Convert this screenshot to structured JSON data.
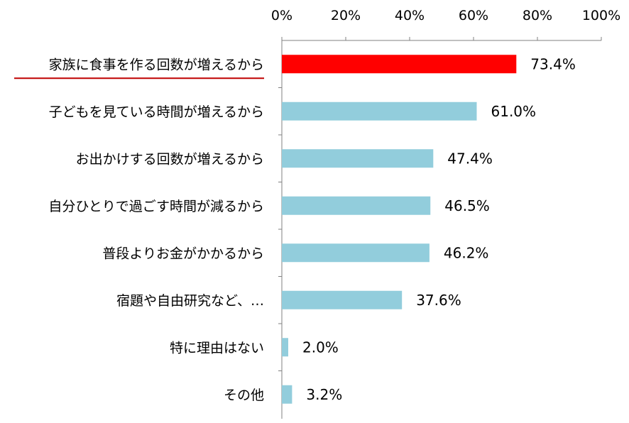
{
  "chart_data": {
    "type": "bar",
    "orientation": "horizontal",
    "title": "",
    "xlabel": "",
    "ylabel": "",
    "xlim": [
      0,
      100
    ],
    "x_ticks": [
      "0%",
      "20%",
      "40%",
      "60%",
      "80%",
      "100%"
    ],
    "categories": [
      "家族に食事を作る回数が増えるから",
      "子どもを見ている時間が増えるから",
      "お出かけする回数が増えるから",
      "自分ひとりで過ごす時間が減るから",
      "普段よりお金がかかるから",
      "宿題や自由研究など、…",
      "特に理由はない",
      "その他"
    ],
    "values": [
      73.4,
      61.0,
      47.4,
      46.5,
      46.2,
      37.6,
      2.0,
      3.2
    ],
    "value_labels": [
      "73.4%",
      "61.0%",
      "47.4%",
      "46.5%",
      "46.2%",
      "37.6%",
      "2.0%",
      "3.2%"
    ],
    "highlight_index": 0,
    "colors": {
      "default": "#92CDDC",
      "highlight": "#FF0000",
      "underline": "#C00000",
      "axis": "#808080"
    },
    "grid": false,
    "legend": "none"
  }
}
